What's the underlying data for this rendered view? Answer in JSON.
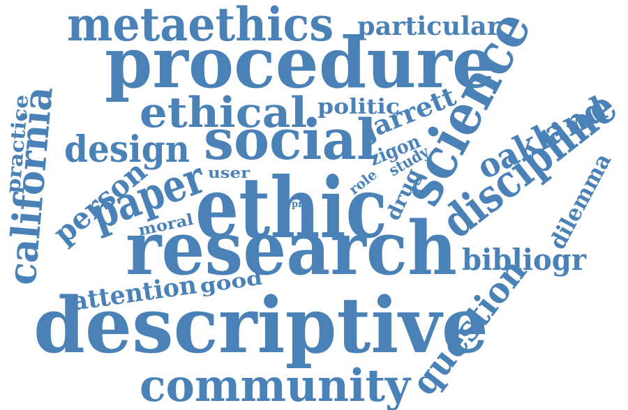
{
  "word_color": "#4a82b8",
  "words": [
    {
      "text": "metaethics"
    },
    {
      "text": "particular"
    },
    {
      "text": "procedure"
    },
    {
      "text": "science"
    },
    {
      "text": "ethical"
    },
    {
      "text": "politic"
    },
    {
      "text": "california"
    },
    {
      "text": "practice"
    },
    {
      "text": "social"
    },
    {
      "text": "jarrett"
    },
    {
      "text": "oakland"
    },
    {
      "text": "design"
    },
    {
      "text": "zigon"
    },
    {
      "text": "user"
    },
    {
      "text": "study"
    },
    {
      "text": "role"
    },
    {
      "text": "person"
    },
    {
      "text": "paper"
    },
    {
      "text": "ethic"
    },
    {
      "text": "drug"
    },
    {
      "text": "pr"
    },
    {
      "text": "discipline"
    },
    {
      "text": "moral"
    },
    {
      "text": "dilemma"
    },
    {
      "text": "research"
    },
    {
      "text": "bibliogr"
    },
    {
      "text": "attention"
    },
    {
      "text": "good"
    },
    {
      "text": "descriptive"
    },
    {
      "text": "question"
    },
    {
      "text": "community"
    }
  ]
}
